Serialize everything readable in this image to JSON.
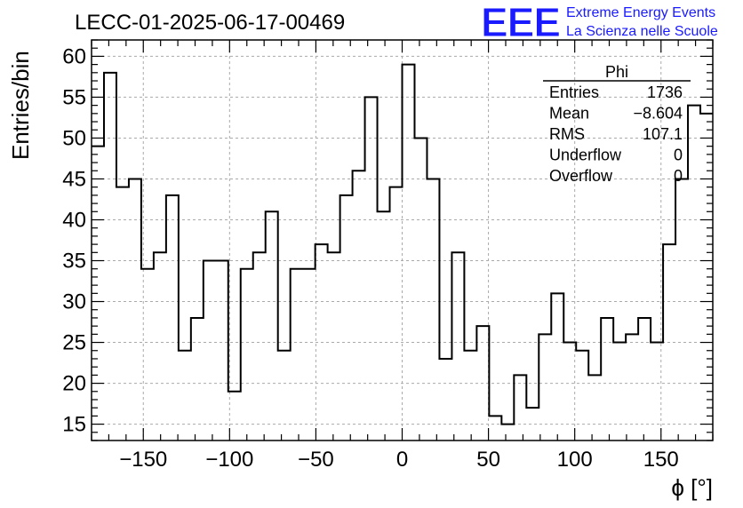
{
  "chart_data": {
    "type": "bar",
    "title": "LECC-01-2025-06-17-00469",
    "xlabel": "ϕ [°]",
    "ylabel": "Entries/bin",
    "xlim": [
      -180,
      180
    ],
    "ylim": [
      13,
      62
    ],
    "bin_width": 7.2,
    "x_ticks": [
      -150,
      -100,
      -50,
      0,
      50,
      100,
      150
    ],
    "x_tick_labels": [
      "−150",
      "−100",
      "−50",
      "0",
      "50",
      "100",
      "150"
    ],
    "y_ticks": [
      15,
      20,
      25,
      30,
      35,
      40,
      45,
      50,
      55,
      60
    ],
    "y_tick_labels": [
      "15",
      "20",
      "25",
      "30",
      "35",
      "40",
      "45",
      "50",
      "55",
      "60"
    ],
    "grid": true,
    "values": [
      49,
      58,
      44,
      45,
      34,
      36,
      43,
      24,
      28,
      35,
      35,
      19,
      34,
      36,
      41,
      24,
      34,
      34,
      37,
      36,
      43,
      46,
      55,
      41,
      44,
      59,
      50,
      45,
      23,
      36,
      24,
      27,
      16,
      15,
      21,
      17,
      26,
      31,
      25,
      24,
      21,
      28,
      25,
      26,
      28,
      25,
      37,
      45,
      54,
      53
    ],
    "line_color": "#000000",
    "stats": {
      "name": "Phi",
      "rows": [
        {
          "label": "Entries",
          "value": "1736"
        },
        {
          "label": "Mean",
          "value": "−8.604"
        },
        {
          "label": "RMS",
          "value": "107.1"
        },
        {
          "label": "Underflow",
          "value": "0"
        },
        {
          "label": "Overflow",
          "value": "0"
        }
      ]
    }
  },
  "logo": {
    "mark": "EEE",
    "line1": "Extreme Energy Events",
    "line2": "La Scienza nelle Scuole",
    "color": "#1a1aff"
  }
}
